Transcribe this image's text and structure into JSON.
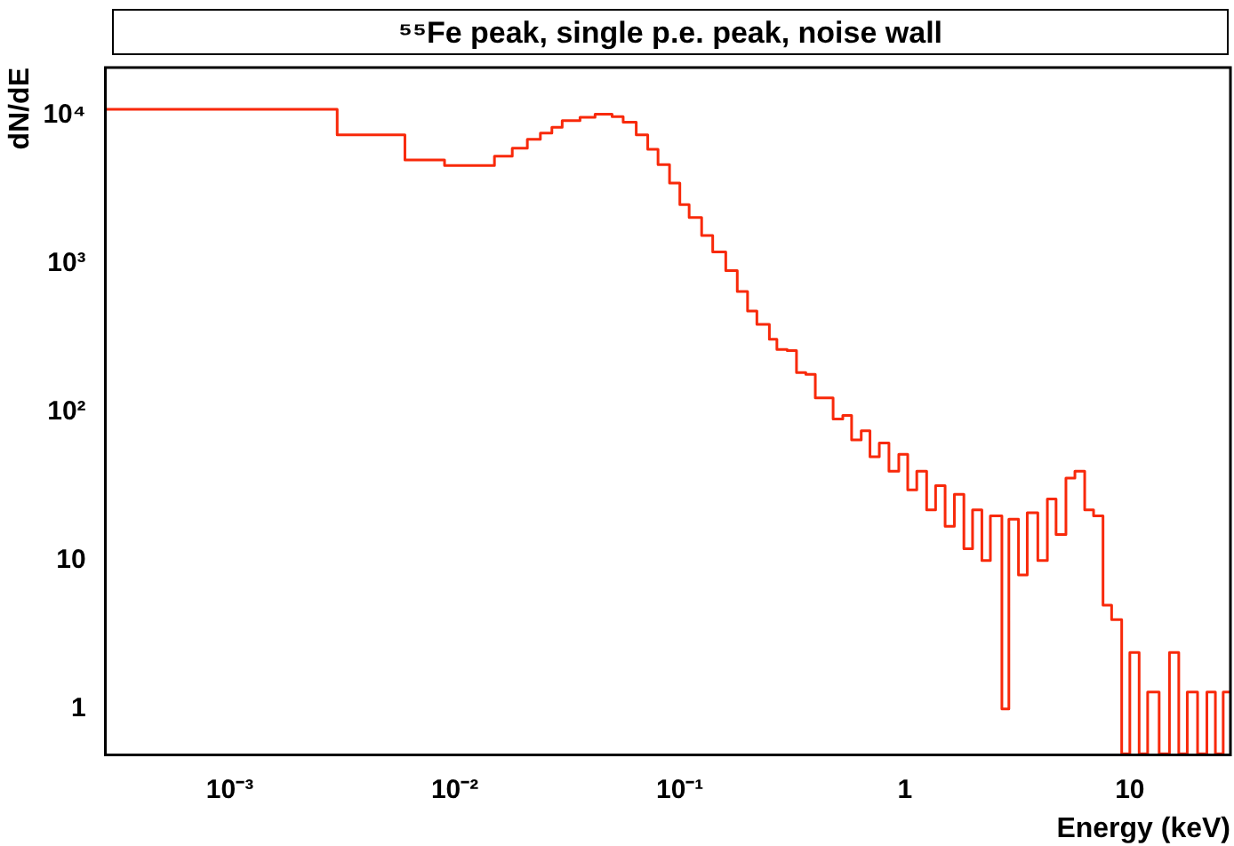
{
  "chart_data": {
    "type": "histogram",
    "title": "⁵⁵Fe peak, single p.e. peak, noise wall",
    "xlabel": "Energy (keV)",
    "ylabel": "dN/dE",
    "color": "#f8290a",
    "log": "xy",
    "grid": false,
    "legend": false,
    "xlim": [
      0.00028,
      28
    ],
    "ylim": [
      0.49,
      21000
    ],
    "xticks": [
      {
        "value": 0.001,
        "label": "10⁻³"
      },
      {
        "value": 0.01,
        "label": "10⁻²"
      },
      {
        "value": 0.1,
        "label": "10⁻¹"
      },
      1,
      10
    ],
    "yticks": [
      1,
      10,
      {
        "value": 100,
        "label": "10²"
      },
      {
        "value": 1000,
        "label": "10³"
      },
      {
        "value": 10000,
        "label": "10⁴"
      }
    ],
    "bins": [
      0.00028,
      0.003,
      0.006,
      0.009,
      0.015,
      0.018,
      0.021,
      0.024,
      0.027,
      0.03,
      0.036,
      0.042,
      0.05,
      0.056,
      0.064,
      0.072,
      0.08,
      0.09,
      0.1,
      0.11,
      0.125,
      0.14,
      0.16,
      0.18,
      0.2,
      0.22,
      0.25,
      0.27,
      0.3,
      0.33,
      0.363,
      0.4,
      0.44,
      0.48,
      0.53,
      0.58,
      0.64,
      0.7,
      0.77,
      0.85,
      0.94,
      1.03,
      1.13,
      1.25,
      1.37,
      1.51,
      1.66,
      1.83,
      2.0,
      2.2,
      2.4,
      2.7,
      2.9,
      3.2,
      3.5,
      3.9,
      4.3,
      4.7,
      5.2,
      5.7,
      6.3,
      6.9,
      7.6,
      8.3,
      9.2,
      10,
      11,
      12,
      13.5,
      15,
      16.5,
      18,
      20,
      22,
      24,
      26,
      28
    ],
    "values": [
      11000,
      7400,
      5000,
      4600,
      5300,
      6000,
      6900,
      7600,
      8300,
      9200,
      9700,
      10200,
      9800,
      9000,
      7400,
      5900,
      4650,
      3500,
      2500,
      2050,
      1550,
      1200,
      900,
      650,
      480,
      390,
      310,
      265,
      260,
      185,
      180,
      125,
      125,
      90,
      95,
      65,
      75,
      50,
      62,
      40,
      52,
      30,
      40,
      22,
      32,
      17,
      28,
      12,
      22,
      10,
      20,
      1,
      19,
      8,
      21,
      10,
      26,
      15,
      36,
      40,
      22,
      20,
      5,
      4,
      0.5,
      2.4,
      0.5,
      1.3,
      0.5,
      2.4,
      0.5,
      1.3,
      0.5,
      1.3,
      0.5,
      1.3
    ]
  }
}
